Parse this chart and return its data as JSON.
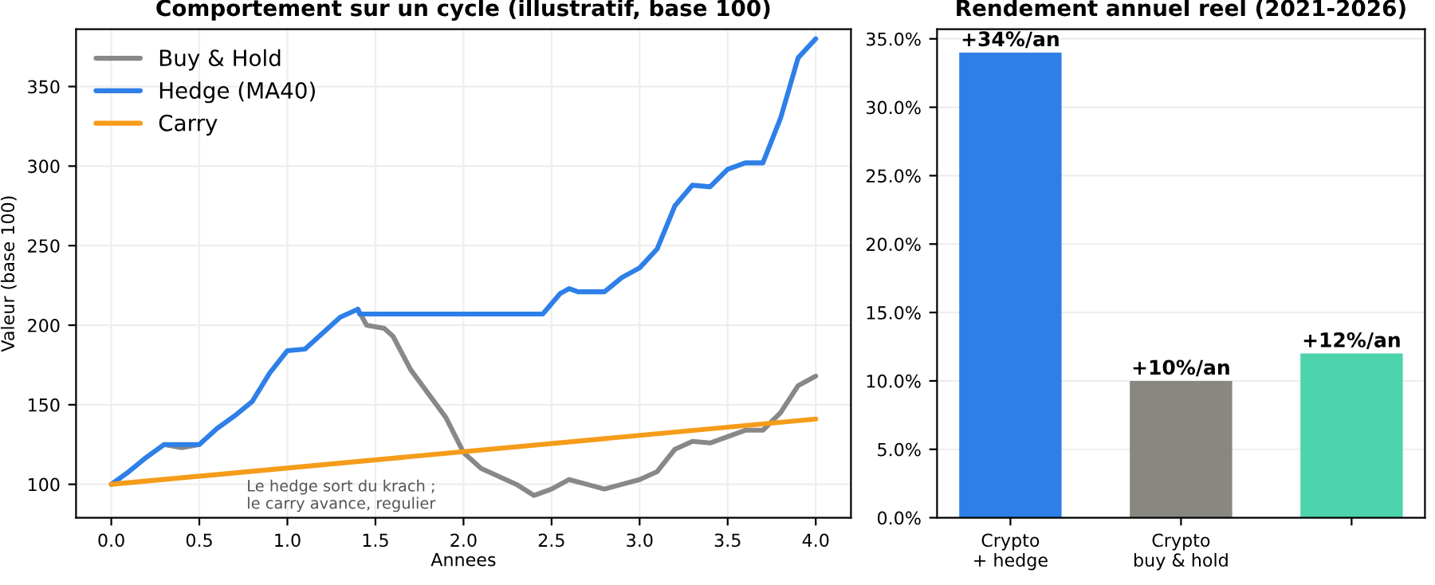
{
  "chart_data": [
    {
      "type": "line",
      "title": "Comportement sur un cycle (illustratif, base 100)",
      "xlabel": "Annees",
      "ylabel": "Valeur (base 100)",
      "xlim": [
        -0.2,
        4.2
      ],
      "xticks": [
        {
          "value": 0,
          "label": "0.0"
        },
        {
          "value": 0.5,
          "label": "0.5"
        },
        {
          "value": 1,
          "label": "1.0"
        },
        {
          "value": 1.5,
          "label": "1.5"
        },
        {
          "value": 2,
          "label": "2.0"
        },
        {
          "value": 2.5,
          "label": "2.5"
        },
        {
          "value": 3,
          "label": "3.0"
        },
        {
          "value": 3.5,
          "label": "3.5"
        },
        {
          "value": 4,
          "label": "4.0"
        }
      ],
      "ylim": [
        79,
        386
      ],
      "yticks": [
        100,
        150,
        200,
        250,
        300,
        350
      ],
      "grid": true,
      "legend": "top left",
      "line_style": "solid",
      "series": [
        {
          "name": "Buy & Hold",
          "color": "#888888",
          "x": [
            0.3,
            0.4,
            0.5,
            0.6,
            0.7,
            0.8,
            0.9,
            1.0,
            1.1,
            1.2,
            1.3,
            1.4,
            1.45,
            1.55,
            1.6,
            1.7,
            1.8,
            1.9,
            2.0,
            2.1,
            2.2,
            2.3,
            2.4,
            2.5,
            2.6,
            2.7,
            2.8,
            2.9,
            3.0,
            3.1,
            3.2,
            3.3,
            3.4,
            3.5,
            3.6,
            3.7,
            3.8,
            3.9,
            4.0
          ],
          "values": [
            125,
            123,
            125,
            null,
            null,
            null,
            null,
            null,
            null,
            null,
            null,
            210,
            200,
            198,
            193,
            172,
            157,
            142,
            120,
            110,
            105,
            100,
            93,
            97,
            103,
            100,
            97,
            100,
            103,
            108,
            122,
            127,
            126,
            130,
            134,
            134,
            145,
            162,
            168
          ]
        },
        {
          "name": "Hedge (MA40)",
          "color": "#2e7fe8",
          "x": [
            0,
            0.1,
            0.2,
            0.3,
            0.4,
            0.5,
            0.6,
            0.7,
            0.8,
            0.9,
            1.0,
            1.1,
            1.2,
            1.3,
            1.4,
            1.41,
            2.45,
            2.55,
            2.6,
            2.65,
            2.8,
            2.9,
            3.0,
            3.1,
            3.2,
            3.3,
            3.4,
            3.5,
            3.6,
            3.7,
            3.8,
            3.9,
            4.0
          ],
          "values": [
            100,
            108,
            117,
            125,
            125,
            125,
            135,
            143,
            152,
            170,
            184,
            185,
            195,
            205,
            210,
            207,
            207,
            220,
            223,
            221,
            221,
            230,
            236,
            248,
            275,
            288,
            287,
            298,
            302,
            302,
            330,
            368,
            380
          ]
        },
        {
          "name": "Carry",
          "color": "#f59c1a",
          "x": [
            0,
            4
          ],
          "values": [
            100,
            141
          ]
        }
      ],
      "annotations": [
        "Le hedge sort du krach ;\nle carry avance, regulier"
      ]
    },
    {
      "type": "bar",
      "title": "Rendement annuel reel (2021-2026)",
      "categories": [
        "Crypto\n+ hedge",
        "Crypto\nbuy & hold",
        null
      ],
      "values": [
        34,
        10,
        12
      ],
      "colors": [
        "#2e7fe8",
        "#888780",
        "#4dd4ac"
      ],
      "value_labels": [
        "+34%/an",
        "+10%/an",
        "+12%/an"
      ],
      "ylim": [
        0,
        35.7
      ],
      "yticks": [
        {
          "value": 0,
          "label": "0.0%"
        },
        {
          "value": 5,
          "label": "5.0%"
        },
        {
          "value": 10,
          "label": "10.0%"
        },
        {
          "value": 15,
          "label": "15.0%"
        },
        {
          "value": 20,
          "label": "20.0%"
        },
        {
          "value": 25,
          "label": "25.0%"
        },
        {
          "value": 30,
          "label": "30.0%"
        },
        {
          "value": 35,
          "label": "35.0%"
        }
      ],
      "grid": "y"
    }
  ]
}
